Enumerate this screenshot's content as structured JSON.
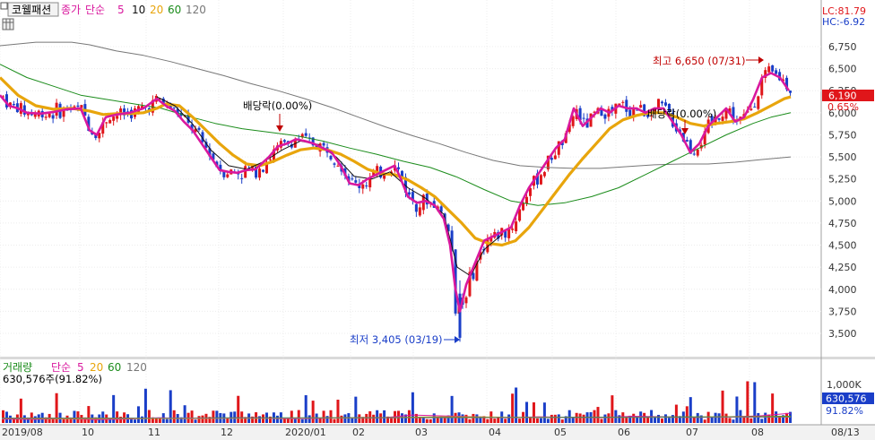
{
  "header": {
    "stock_name": "코웰패션",
    "price_label": "종가",
    "ma_label": "단순",
    "ma_periods": [
      "5",
      "10",
      "20",
      "60",
      "120"
    ],
    "ma_colors": [
      "#d9189e",
      "#111111",
      "#e8a50c",
      "#1b8c1b",
      "#777777"
    ],
    "lc_text": "LC:81.79",
    "hc_text": "HC:-6.92"
  },
  "volume_header": {
    "label": "거래량",
    "ma_label": "단순",
    "ma_periods": [
      "5",
      "20",
      "60",
      "120"
    ],
    "ma_colors": [
      "#d9189e",
      "#e8a50c",
      "#1b8c1b",
      "#777777"
    ],
    "value_text": "630,576주(91.82%)"
  },
  "annotations": {
    "high_text": "최고 6,650 (07/31)",
    "low_text": "최저 3,405 (03/19)",
    "dividend_1": "배당락(0.00%)",
    "dividend_2": "배당락(0.00%)"
  },
  "badges": {
    "current_price": "6,190",
    "change_pct": "0.65%",
    "volume_value": "630,576",
    "volume_pct": "91.82%"
  },
  "volume_axis_label": "1,000K",
  "chart_data": {
    "type": "candlestick",
    "price_ticks": [
      "6,750",
      "6,500",
      "6,250",
      "6,000",
      "5,750",
      "5,500",
      "5,250",
      "5,000",
      "4,750",
      "4,500",
      "4,250",
      "4,000",
      "3,750",
      "3,500"
    ],
    "ylim": [
      3400,
      6850
    ],
    "x_labels": [
      "2019/08",
      "10",
      "11",
      "12",
      "2020/01",
      "02",
      "03",
      "04",
      "05",
      "06",
      "07",
      "08",
      "08/13"
    ],
    "series": [
      {
        "name": "5",
        "color": "#d9189e",
        "points": [
          [
            0,
            6200
          ],
          [
            10,
            6080
          ],
          [
            20,
            6050
          ],
          [
            30,
            6000
          ],
          [
            45,
            5990
          ],
          [
            60,
            6010
          ],
          [
            75,
            6040
          ],
          [
            90,
            6050
          ],
          [
            100,
            5800
          ],
          [
            108,
            5750
          ],
          [
            118,
            5950
          ],
          [
            130,
            5980
          ],
          [
            145,
            6000
          ],
          [
            160,
            6050
          ],
          [
            175,
            6160
          ],
          [
            185,
            6080
          ],
          [
            195,
            6020
          ],
          [
            205,
            5900
          ],
          [
            215,
            5800
          ],
          [
            225,
            5650
          ],
          [
            235,
            5500
          ],
          [
            245,
            5350
          ],
          [
            255,
            5330
          ],
          [
            265,
            5320
          ],
          [
            275,
            5350
          ],
          [
            285,
            5360
          ],
          [
            300,
            5500
          ],
          [
            310,
            5620
          ],
          [
            320,
            5650
          ],
          [
            330,
            5700
          ],
          [
            340,
            5680
          ],
          [
            350,
            5650
          ],
          [
            360,
            5600
          ],
          [
            370,
            5550
          ],
          [
            380,
            5400
          ],
          [
            390,
            5200
          ],
          [
            400,
            5180
          ],
          [
            410,
            5250
          ],
          [
            420,
            5300
          ],
          [
            430,
            5350
          ],
          [
            440,
            5400
          ],
          [
            445,
            5300
          ],
          [
            455,
            5050
          ],
          [
            465,
            4980
          ],
          [
            475,
            5000
          ],
          [
            485,
            4950
          ],
          [
            495,
            4800
          ],
          [
            502,
            4500
          ],
          [
            508,
            4000
          ],
          [
            513,
            3750
          ],
          [
            520,
            4050
          ],
          [
            530,
            4300
          ],
          [
            540,
            4550
          ],
          [
            550,
            4600
          ],
          [
            560,
            4650
          ],
          [
            570,
            4700
          ],
          [
            580,
            4950
          ],
          [
            590,
            5150
          ],
          [
            600,
            5300
          ],
          [
            610,
            5450
          ],
          [
            620,
            5600
          ],
          [
            630,
            5700
          ],
          [
            640,
            6050
          ],
          [
            650,
            5850
          ],
          [
            660,
            5950
          ],
          [
            670,
            6050
          ],
          [
            680,
            6000
          ],
          [
            690,
            6080
          ],
          [
            700,
            6050
          ],
          [
            710,
            6050
          ],
          [
            720,
            6000
          ],
          [
            730,
            6050
          ],
          [
            740,
            6050
          ],
          [
            750,
            5900
          ],
          [
            760,
            5750
          ],
          [
            770,
            5550
          ],
          [
            780,
            5650
          ],
          [
            790,
            5850
          ],
          [
            800,
            5950
          ],
          [
            810,
            6050
          ],
          [
            820,
            5900
          ],
          [
            830,
            5950
          ],
          [
            840,
            6150
          ],
          [
            850,
            6400
          ],
          [
            860,
            6450
          ],
          [
            870,
            6400
          ],
          [
            880,
            6250
          ]
        ]
      },
      {
        "name": "10",
        "color": "#111111",
        "points": [
          [
            175,
            6180
          ],
          [
            195,
            6080
          ],
          [
            215,
            5870
          ],
          [
            235,
            5580
          ],
          [
            255,
            5400
          ],
          [
            275,
            5360
          ],
          [
            295,
            5450
          ],
          [
            315,
            5580
          ],
          [
            335,
            5680
          ],
          [
            355,
            5640
          ],
          [
            375,
            5500
          ],
          [
            395,
            5280
          ],
          [
            415,
            5250
          ],
          [
            435,
            5330
          ],
          [
            455,
            5150
          ],
          [
            475,
            5030
          ],
          [
            495,
            4850
          ],
          [
            510,
            4250
          ],
          [
            525,
            4150
          ],
          [
            540,
            4450
          ],
          [
            560,
            4620
          ]
        ]
      },
      {
        "name": "20",
        "color": "#e8a50c",
        "points": [
          [
            0,
            6400
          ],
          [
            20,
            6200
          ],
          [
            40,
            6080
          ],
          [
            60,
            6040
          ],
          [
            80,
            6050
          ],
          [
            100,
            6020
          ],
          [
            115,
            5980
          ],
          [
            130,
            5990
          ],
          [
            145,
            5990
          ],
          [
            160,
            6000
          ],
          [
            175,
            6050
          ],
          [
            185,
            6100
          ],
          [
            200,
            6080
          ],
          [
            215,
            5950
          ],
          [
            230,
            5800
          ],
          [
            245,
            5650
          ],
          [
            260,
            5520
          ],
          [
            275,
            5420
          ],
          [
            290,
            5400
          ],
          [
            305,
            5450
          ],
          [
            320,
            5520
          ],
          [
            335,
            5580
          ],
          [
            350,
            5600
          ],
          [
            365,
            5580
          ],
          [
            380,
            5530
          ],
          [
            395,
            5450
          ],
          [
            410,
            5360
          ],
          [
            425,
            5310
          ],
          [
            440,
            5300
          ],
          [
            455,
            5240
          ],
          [
            470,
            5150
          ],
          [
            485,
            5050
          ],
          [
            500,
            4900
          ],
          [
            515,
            4750
          ],
          [
            530,
            4580
          ],
          [
            545,
            4520
          ],
          [
            560,
            4500
          ],
          [
            575,
            4550
          ],
          [
            590,
            4700
          ],
          [
            605,
            4900
          ],
          [
            620,
            5100
          ],
          [
            635,
            5300
          ],
          [
            650,
            5480
          ],
          [
            665,
            5650
          ],
          [
            680,
            5820
          ],
          [
            695,
            5920
          ],
          [
            710,
            5970
          ],
          [
            725,
            6000
          ],
          [
            740,
            6000
          ],
          [
            755,
            5950
          ],
          [
            770,
            5880
          ],
          [
            785,
            5850
          ],
          [
            800,
            5880
          ],
          [
            815,
            5900
          ],
          [
            830,
            5930
          ],
          [
            845,
            6000
          ],
          [
            860,
            6080
          ],
          [
            875,
            6160
          ],
          [
            882,
            6180
          ]
        ]
      },
      {
        "name": "60",
        "color": "#1b8c1b",
        "points": [
          [
            0,
            6550
          ],
          [
            30,
            6400
          ],
          [
            60,
            6300
          ],
          [
            90,
            6200
          ],
          [
            120,
            6150
          ],
          [
            150,
            6100
          ],
          [
            180,
            6050
          ],
          [
            210,
            5960
          ],
          [
            240,
            5880
          ],
          [
            270,
            5820
          ],
          [
            300,
            5780
          ],
          [
            330,
            5740
          ],
          [
            360,
            5680
          ],
          [
            390,
            5600
          ],
          [
            420,
            5530
          ],
          [
            450,
            5450
          ],
          [
            480,
            5380
          ],
          [
            510,
            5270
          ],
          [
            540,
            5130
          ],
          [
            570,
            5000
          ],
          [
            600,
            4950
          ],
          [
            630,
            4980
          ],
          [
            660,
            5050
          ],
          [
            690,
            5150
          ],
          [
            720,
            5300
          ],
          [
            750,
            5450
          ],
          [
            780,
            5600
          ],
          [
            810,
            5750
          ],
          [
            840,
            5880
          ],
          [
            860,
            5950
          ],
          [
            882,
            6000
          ]
        ]
      },
      {
        "name": "120",
        "color": "#777777",
        "points": [
          [
            0,
            6760
          ],
          [
            40,
            6800
          ],
          [
            80,
            6800
          ],
          [
            100,
            6770
          ],
          [
            130,
            6700
          ],
          [
            160,
            6650
          ],
          [
            190,
            6580
          ],
          [
            220,
            6500
          ],
          [
            250,
            6420
          ],
          [
            280,
            6330
          ],
          [
            310,
            6250
          ],
          [
            340,
            6160
          ],
          [
            370,
            6060
          ],
          [
            400,
            5950
          ],
          [
            430,
            5840
          ],
          [
            460,
            5740
          ],
          [
            490,
            5650
          ],
          [
            520,
            5550
          ],
          [
            550,
            5460
          ],
          [
            580,
            5400
          ],
          [
            610,
            5380
          ],
          [
            640,
            5370
          ],
          [
            670,
            5370
          ],
          [
            700,
            5390
          ],
          [
            730,
            5410
          ],
          [
            760,
            5420
          ],
          [
            790,
            5420
          ],
          [
            820,
            5440
          ],
          [
            850,
            5470
          ],
          [
            882,
            5500
          ]
        ]
      }
    ],
    "volume_series": [
      {
        "name": "5",
        "color": "#d9189e",
        "levels": [
          0.22,
          0.2,
          0.25,
          0.18,
          0.22,
          0.3,
          0.25,
          0.28,
          0.3,
          0.24,
          0.26,
          0.3,
          0.28,
          0.45,
          0.4,
          0.35,
          0.3,
          0.35,
          0.32,
          0.3,
          0.38,
          0.35,
          0.32,
          0.35,
          0.4,
          0.55
        ]
      },
      {
        "name": "20",
        "color": "#e8a50c",
        "levels": [
          0.26,
          0.25,
          0.24,
          0.24,
          0.25,
          0.26,
          0.26,
          0.27,
          0.27,
          0.27,
          0.28,
          0.28,
          0.3,
          0.33,
          0.35,
          0.34,
          0.33,
          0.32,
          0.32,
          0.32,
          0.33,
          0.33,
          0.34,
          0.35,
          0.36,
          0.38
        ]
      },
      {
        "name": "60",
        "color": "#1b8c1b",
        "levels": [
          0.28,
          0.28,
          0.28,
          0.28,
          0.28,
          0.28,
          0.28,
          0.29,
          0.29,
          0.29,
          0.29,
          0.3,
          0.3,
          0.31,
          0.32,
          0.32,
          0.32,
          0.32,
          0.33,
          0.33,
          0.33,
          0.34,
          0.34,
          0.34,
          0.35,
          0.36
        ]
      },
      {
        "name": "120",
        "color": "#777777",
        "levels": [
          0.27,
          0.27,
          0.27,
          0.27,
          0.27,
          0.28,
          0.28,
          0.28,
          0.28,
          0.28,
          0.29,
          0.29,
          0.29,
          0.3,
          0.3,
          0.3,
          0.31,
          0.31,
          0.31,
          0.31,
          0.32,
          0.32,
          0.32,
          0.33,
          0.33,
          0.33
        ]
      }
    ],
    "volume_ylim": [
      0,
      1200000
    ],
    "up_color": "#e0161a",
    "down_color": "#1a3ec8"
  }
}
